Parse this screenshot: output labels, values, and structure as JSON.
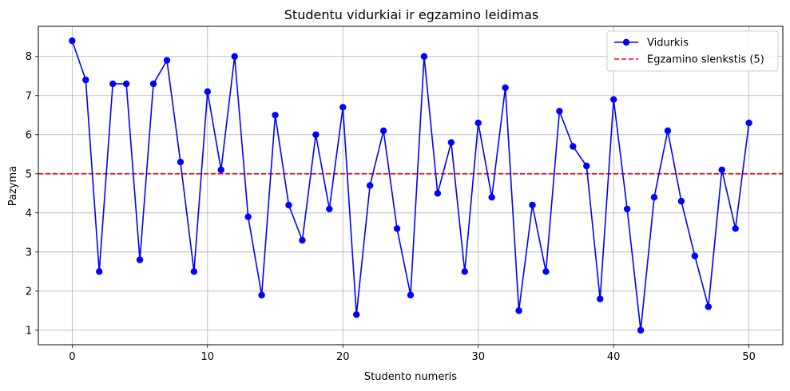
{
  "chart_data": {
    "type": "line",
    "title": "Studentu vidurkiai ir egzamino leidimas",
    "xlabel": "Studento numeris",
    "ylabel": "Pazyma",
    "xlim": [
      -2.5,
      52.5
    ],
    "ylim": [
      0.63,
      8.77
    ],
    "xticks": [
      0,
      10,
      20,
      30,
      40,
      50
    ],
    "yticks": [
      1,
      2,
      3,
      4,
      5,
      6,
      7,
      8
    ],
    "grid": true,
    "legend_position": "top-right",
    "series": [
      {
        "name": "Vidurkis",
        "color": "#0000ff",
        "marker": "circle",
        "x": [
          0,
          1,
          2,
          3,
          4,
          5,
          6,
          7,
          8,
          9,
          10,
          11,
          12,
          13,
          14,
          15,
          16,
          17,
          18,
          19,
          20,
          21,
          22,
          23,
          24,
          25,
          26,
          27,
          28,
          29,
          30,
          31,
          32,
          33,
          34,
          35,
          36,
          37,
          38,
          39,
          40,
          41,
          42,
          43,
          44,
          45,
          46,
          47,
          48,
          49,
          50
        ],
        "values": [
          8.4,
          7.4,
          2.5,
          7.3,
          7.3,
          2.8,
          7.3,
          7.9,
          5.3,
          2.5,
          7.1,
          5.1,
          8.0,
          3.9,
          1.9,
          6.5,
          4.2,
          3.3,
          6.0,
          4.1,
          6.7,
          1.4,
          4.7,
          6.1,
          3.6,
          1.9,
          8.0,
          4.5,
          5.8,
          2.5,
          6.3,
          4.4,
          7.2,
          1.5,
          4.2,
          2.5,
          6.6,
          5.7,
          5.2,
          1.8,
          6.9,
          4.1,
          1.0,
          4.4,
          6.1,
          4.3,
          2.9,
          1.6,
          5.1,
          3.6,
          6.3
        ]
      }
    ],
    "reference_lines": [
      {
        "name": "Egzamino slenkstis (5)",
        "y": 5,
        "color": "#ff0000",
        "style": "dashed"
      }
    ]
  }
}
